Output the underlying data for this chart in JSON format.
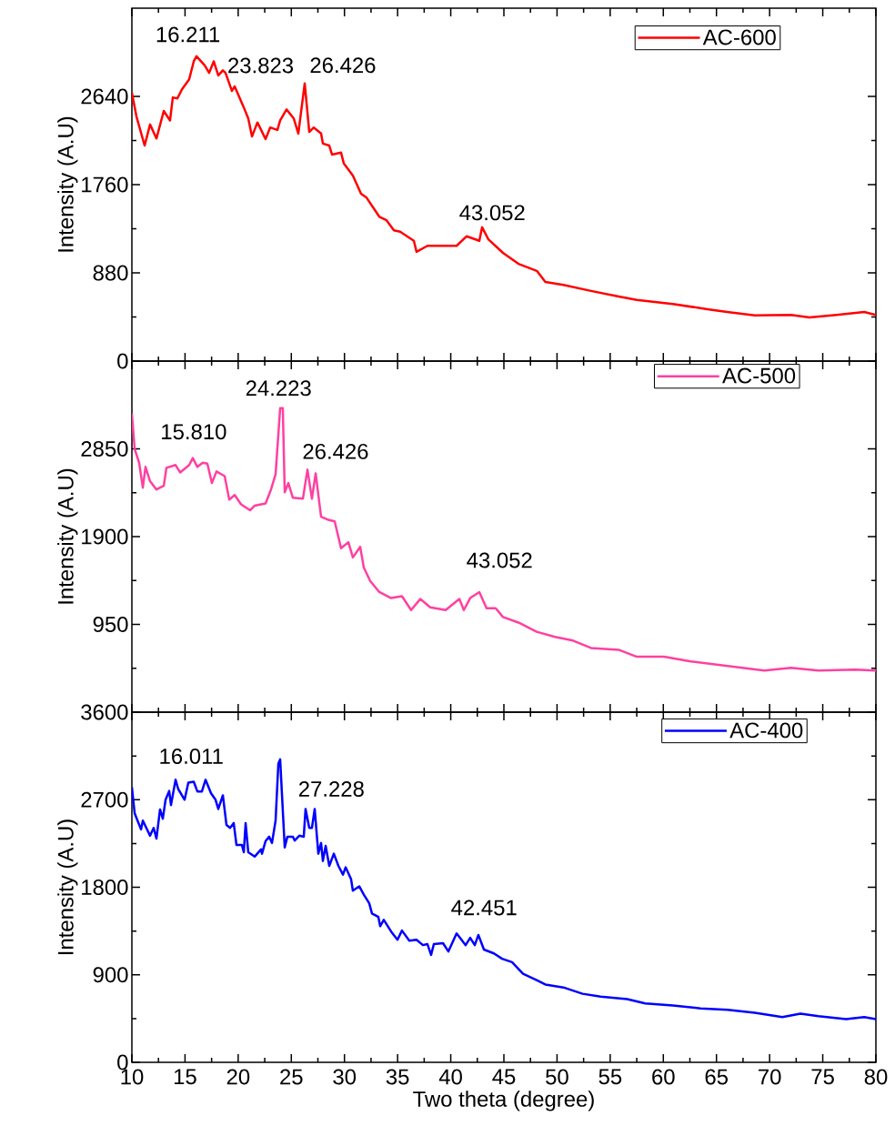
{
  "chart_data": [
    {
      "type": "line",
      "ylabel": "Intensity (A.U)",
      "xlim": [
        10,
        80
      ],
      "xticks": [
        10,
        15,
        20,
        25,
        30,
        35,
        40,
        45,
        50,
        55,
        60,
        65,
        70,
        75,
        80
      ],
      "ylim": [
        0,
        3520
      ],
      "yticks": [
        0,
        880,
        1760,
        2640
      ],
      "tick_labels": "y",
      "legend": "top right",
      "series": [
        {
          "name": "AC-600",
          "color": "#ff0000",
          "x": [
            10.0,
            10.43,
            11.2,
            11.71,
            12.31,
            13.0,
            13.59,
            13.85,
            14.28,
            14.71,
            15.39,
            15.82,
            16.08,
            16.85,
            17.27,
            17.7,
            18.13,
            18.56,
            18.81,
            19.41,
            19.67,
            20.53,
            20.95,
            21.3,
            21.81,
            22.58,
            23.01,
            23.69,
            23.95,
            24.55,
            25.23,
            25.66,
            26.26,
            26.69,
            27.11,
            27.8,
            27.97,
            28.57,
            28.83,
            29.68,
            29.94,
            30.79,
            31.56,
            32.08,
            33.28,
            33.96,
            34.65,
            35.24,
            36.53,
            36.78,
            37.81,
            38.92,
            40.55,
            41.49,
            42.69,
            42.95,
            43.54,
            44.91,
            46.37,
            48.1,
            48.9,
            50.6,
            53.2,
            55.8,
            57.5,
            60.9,
            64.3,
            66.0,
            68.6,
            72.0,
            73.75,
            76.3,
            78.9,
            80.0
          ],
          "values": [
            2676,
            2440,
            2150,
            2360,
            2220,
            2495,
            2400,
            2630,
            2620,
            2710,
            2810,
            2990,
            3040,
            2950,
            2875,
            2990,
            2850,
            2900,
            2875,
            2695,
            2740,
            2530,
            2420,
            2240,
            2380,
            2215,
            2330,
            2305,
            2400,
            2510,
            2420,
            2270,
            2770,
            2286,
            2330,
            2270,
            2170,
            2150,
            2060,
            2080,
            1970,
            1850,
            1670,
            1630,
            1440,
            1405,
            1305,
            1290,
            1200,
            1090,
            1150,
            1150,
            1150,
            1245,
            1200,
            1335,
            1215,
            1080,
            970,
            900,
            790,
            760,
            700,
            645,
            610,
            570,
            515,
            490,
            455,
            460,
            435,
            460,
            490,
            460
          ]
        }
      ],
      "annotations": [
        {
          "text": "16.211",
          "x": 16.211,
          "y": 3040
        },
        {
          "text": "23.823",
          "x": 23.823,
          "y": 2350
        },
        {
          "text": "26.426",
          "x": 26.426,
          "y": 2770
        },
        {
          "text": "43.052",
          "x": 43.052,
          "y": 1335
        }
      ]
    },
    {
      "type": "line",
      "ylabel": "Intensity (A.U)",
      "xlim": [
        10,
        80
      ],
      "xticks": [
        10,
        15,
        20,
        25,
        30,
        35,
        40,
        45,
        50,
        55,
        60,
        65,
        70,
        75,
        80
      ],
      "ylim": [
        0,
        3800
      ],
      "yticks": [
        {
          "value": 0,
          "label": null
        },
        950,
        1900,
        2850
      ],
      "tick_labels": "y",
      "legend": "top right",
      "series": [
        {
          "name": "AC-500",
          "color": "#ff40a0",
          "x": [
            10.0,
            10.26,
            10.68,
            11.03,
            11.28,
            11.71,
            12.31,
            13.0,
            13.25,
            14.11,
            14.54,
            15.39,
            15.73,
            16.16,
            16.67,
            17.1,
            17.53,
            17.96,
            18.73,
            19.16,
            19.67,
            20.27,
            21.12,
            21.55,
            22.58,
            23.09,
            23.52,
            23.95,
            24.2,
            24.38,
            24.72,
            25.15,
            26.09,
            26.52,
            26.94,
            27.29,
            27.8,
            28.4,
            29.08,
            29.68,
            30.37,
            30.79,
            31.48,
            31.82,
            32.42,
            33.28,
            34.39,
            35.41,
            36.27,
            37.13,
            38.07,
            39.52,
            40.81,
            41.23,
            41.83,
            42.69,
            43.37,
            44.23,
            44.91,
            46.37,
            48.08,
            49.8,
            51.5,
            53.2,
            55.8,
            57.5,
            60.06,
            62.6,
            66.05,
            69.5,
            72.0,
            74.6,
            78.0,
            80.0
          ],
          "values": [
            3230,
            2850,
            2700,
            2430,
            2655,
            2500,
            2410,
            2450,
            2645,
            2675,
            2595,
            2675,
            2750,
            2655,
            2700,
            2690,
            2480,
            2605,
            2555,
            2300,
            2350,
            2250,
            2185,
            2235,
            2260,
            2410,
            2575,
            3290,
            3290,
            2380,
            2480,
            2320,
            2310,
            2625,
            2310,
            2585,
            2115,
            2085,
            2065,
            1775,
            1840,
            1675,
            1790,
            1565,
            1420,
            1300,
            1235,
            1255,
            1105,
            1225,
            1135,
            1105,
            1225,
            1105,
            1235,
            1300,
            1125,
            1125,
            1030,
            970,
            870,
            815,
            775,
            695,
            675,
            600,
            600,
            550,
            500,
            450,
            480,
            450,
            460,
            450
          ]
        }
      ],
      "annotations": [
        {
          "text": "15.810",
          "x": 15.81,
          "y": 2750
        },
        {
          "text": "24.223",
          "x": 24.223,
          "y": 3290
        },
        {
          "text": "26.426",
          "x": 26.426,
          "y": 2625
        },
        {
          "text": "43.052",
          "x": 43.052,
          "y": 1300
        }
      ]
    },
    {
      "type": "line",
      "xlabel": "Two theta (degree)",
      "ylabel": "Intensity (A.U)",
      "xlim": [
        10,
        80
      ],
      "xticks": [
        10,
        15,
        20,
        25,
        30,
        35,
        40,
        45,
        50,
        55,
        60,
        65,
        70,
        75,
        80
      ],
      "ylim": [
        0,
        3600
      ],
      "yticks": [
        0,
        900,
        1800,
        2700,
        3600
      ],
      "legend": "top right",
      "series": [
        {
          "name": "AC-400",
          "color": "#0000ff",
          "x": [
            10.0,
            10.26,
            10.86,
            11.03,
            11.71,
            12.05,
            12.31,
            12.65,
            12.91,
            13.17,
            13.51,
            13.68,
            14.11,
            14.36,
            14.96,
            15.31,
            15.82,
            16.16,
            16.59,
            16.93,
            17.45,
            17.87,
            18.13,
            18.56,
            18.9,
            19.24,
            19.58,
            19.84,
            20.35,
            20.53,
            20.7,
            20.95,
            21.55,
            22.15,
            22.24,
            22.58,
            22.92,
            23.18,
            23.52,
            23.78,
            23.95,
            24.38,
            24.63,
            25.15,
            25.32,
            25.75,
            26.17,
            26.34,
            26.69,
            26.94,
            27.2,
            27.54,
            27.8,
            27.97,
            28.23,
            28.57,
            29.0,
            29.43,
            29.86,
            30.11,
            30.62,
            30.79,
            31.39,
            31.82,
            32.33,
            32.59,
            33.19,
            33.36,
            33.7,
            34.39,
            34.99,
            35.41,
            36.1,
            36.78,
            37.38,
            37.81,
            38.15,
            38.41,
            39.27,
            39.78,
            40.55,
            41.4,
            41.83,
            42.26,
            42.6,
            43.12,
            44.06,
            44.83,
            45.77,
            46.8,
            48.08,
            48.9,
            50.6,
            52.4,
            54.1,
            56.6,
            58.3,
            60.9,
            63.5,
            66.05,
            68.6,
            71.2,
            72.9,
            74.6,
            77.2,
            78.9,
            80.0
          ],
          "values": [
            2830,
            2560,
            2395,
            2485,
            2330,
            2410,
            2300,
            2600,
            2505,
            2700,
            2790,
            2645,
            2905,
            2810,
            2700,
            2875,
            2885,
            2785,
            2785,
            2905,
            2765,
            2700,
            2605,
            2745,
            2440,
            2410,
            2460,
            2235,
            2235,
            2160,
            2460,
            2160,
            2115,
            2190,
            2145,
            2275,
            2320,
            2255,
            2485,
            3070,
            3115,
            2210,
            2320,
            2320,
            2280,
            2330,
            2320,
            2605,
            2410,
            2410,
            2605,
            2145,
            2255,
            2070,
            2225,
            2020,
            2145,
            2020,
            1930,
            2005,
            1885,
            1765,
            1810,
            1725,
            1635,
            1530,
            1495,
            1400,
            1465,
            1345,
            1260,
            1355,
            1250,
            1260,
            1205,
            1215,
            1105,
            1215,
            1225,
            1140,
            1325,
            1205,
            1280,
            1205,
            1310,
            1160,
            1120,
            1065,
            1030,
            910,
            845,
            800,
            770,
            705,
            675,
            650,
            605,
            585,
            555,
            540,
            510,
            465,
            500,
            475,
            445,
            465,
            445
          ]
        }
      ],
      "annotations": [
        {
          "text": "16.011",
          "x": 16.011,
          "y": 2885
        },
        {
          "text": "27.228",
          "x": 27.228,
          "y": 2605
        },
        {
          "text": "42.451",
          "x": 42.451,
          "y": 1310
        }
      ]
    }
  ]
}
